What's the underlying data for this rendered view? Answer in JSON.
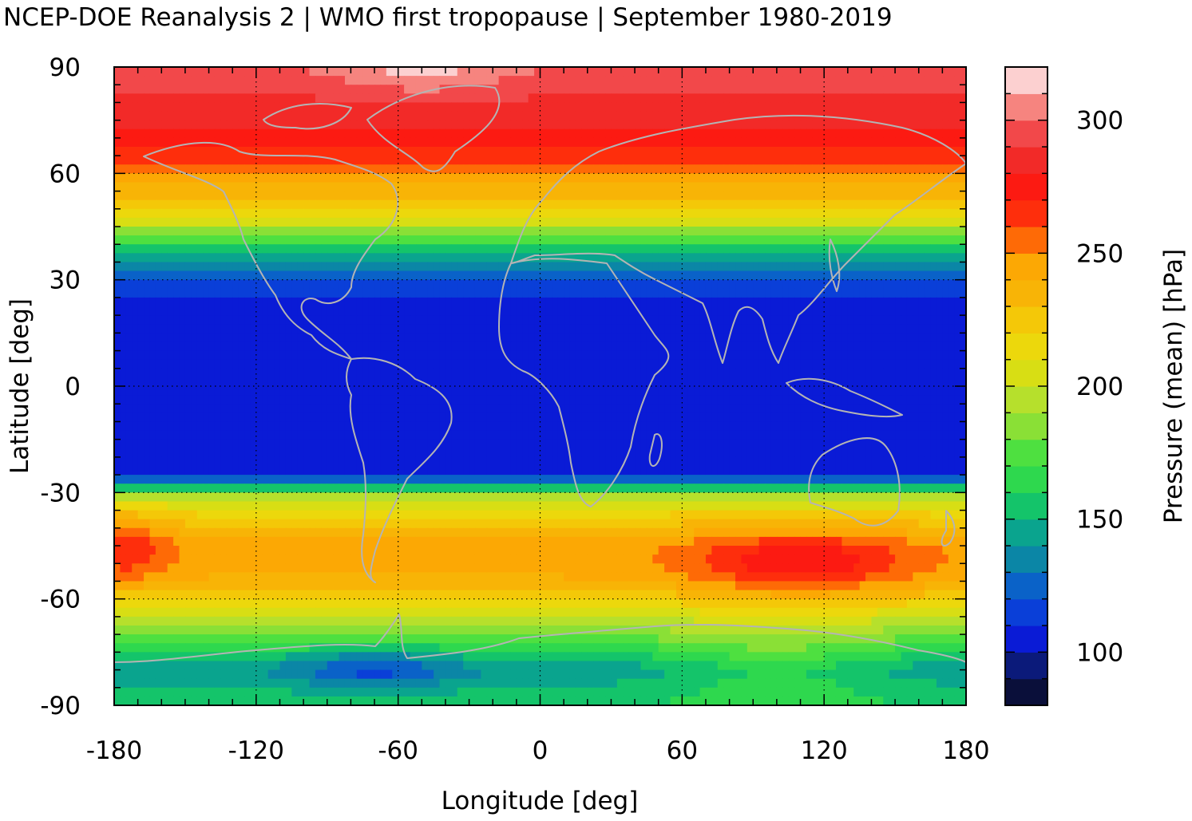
{
  "title": "NCEP-DOE Reanalysis 2 | WMO first tropopause | September 1980-2019",
  "chart_data": {
    "type": "heatmap",
    "xlabel": "Longitude [deg]",
    "ylabel": "Latitude [deg]",
    "colorbar_label": "Pressure (mean) [hPa]",
    "xlim": [
      -180,
      180
    ],
    "ylim": [
      -90,
      90
    ],
    "x_ticks": [
      -180,
      -120,
      -60,
      0,
      60,
      120,
      180
    ],
    "x_tick_labels": [
      "-180",
      "-120",
      "-60",
      "0",
      "60",
      "120",
      "180"
    ],
    "y_ticks": [
      -90,
      -60,
      -30,
      0,
      30,
      60,
      90
    ],
    "y_tick_labels": [
      "-90",
      "-60",
      "-30",
      "0",
      "30",
      "60",
      "90"
    ],
    "colorbar_range": [
      80,
      320
    ],
    "colorbar_ticks": [
      100,
      150,
      200,
      250,
      300
    ],
    "colorbar_tick_labels": [
      "100",
      "150",
      "200",
      "250",
      "300"
    ],
    "grid": true,
    "coastlines": true,
    "colorbar_levels": [
      {
        "from": 80,
        "to": 90,
        "color": "#0a0f3a"
      },
      {
        "from": 90,
        "to": 100,
        "color": "#0b1a7a"
      },
      {
        "from": 100,
        "to": 110,
        "color": "#0a1bd6"
      },
      {
        "from": 110,
        "to": 120,
        "color": "#0a3fd8"
      },
      {
        "from": 120,
        "to": 130,
        "color": "#0a62c8"
      },
      {
        "from": 130,
        "to": 140,
        "color": "#0b86a6"
      },
      {
        "from": 140,
        "to": 150,
        "color": "#0aa48e"
      },
      {
        "from": 150,
        "to": 160,
        "color": "#14c46a"
      },
      {
        "from": 160,
        "to": 170,
        "color": "#2ed84e"
      },
      {
        "from": 170,
        "to": 180,
        "color": "#4ee040"
      },
      {
        "from": 180,
        "to": 190,
        "color": "#8ae036"
      },
      {
        "from": 190,
        "to": 200,
        "color": "#b6e02c"
      },
      {
        "from": 200,
        "to": 210,
        "color": "#d8de14"
      },
      {
        "from": 210,
        "to": 220,
        "color": "#ecd80c"
      },
      {
        "from": 220,
        "to": 230,
        "color": "#f4c808"
      },
      {
        "from": 230,
        "to": 240,
        "color": "#f8b406"
      },
      {
        "from": 240,
        "to": 250,
        "color": "#fca804"
      },
      {
        "from": 250,
        "to": 260,
        "color": "#fe6a06"
      },
      {
        "from": 260,
        "to": 270,
        "color": "#fe2e0c"
      },
      {
        "from": 270,
        "to": 280,
        "color": "#fc1a12"
      },
      {
        "from": 280,
        "to": 290,
        "color": "#f22a28"
      },
      {
        "from": 290,
        "to": 300,
        "color": "#f2484a"
      },
      {
        "from": 300,
        "to": 310,
        "color": "#f6847f"
      },
      {
        "from": 310,
        "to": 320,
        "color": "#fcd0d0"
      }
    ],
    "zonal_mean_profile": {
      "lat": [
        -90,
        -85,
        -80,
        -75,
        -70,
        -65,
        -60,
        -55,
        -50,
        -45,
        -40,
        -35,
        -31,
        -28,
        -25,
        -20,
        -10,
        0,
        10,
        20,
        25,
        30,
        35,
        40,
        45,
        50,
        55,
        60,
        65,
        70,
        75,
        80,
        85,
        90
      ],
      "pressure": [
        158,
        150,
        140,
        158,
        180,
        200,
        222,
        238,
        245,
        245,
        232,
        215,
        190,
        140,
        110,
        105,
        105,
        105,
        105,
        105,
        110,
        120,
        140,
        165,
        195,
        215,
        235,
        250,
        265,
        275,
        282,
        288,
        295,
        300
      ]
    },
    "anomalies": [
      {
        "lon": 110,
        "lat": -50,
        "dlon": 45,
        "dlat": 9,
        "pressure_delta": 35
      },
      {
        "lon": -175,
        "lat": -45,
        "dlon": 18,
        "dlat": 10,
        "pressure_delta": 25
      },
      {
        "lon": -50,
        "lat": 88,
        "dlon": 30,
        "dlat": 5,
        "pressure_delta": 15
      },
      {
        "lon": -70,
        "lat": -80,
        "dlon": 30,
        "dlat": 6,
        "pressure_delta": -25
      },
      {
        "lon": 100,
        "lat": -78,
        "dlon": 50,
        "dlat": 12,
        "pressure_delta": 20
      }
    ]
  }
}
